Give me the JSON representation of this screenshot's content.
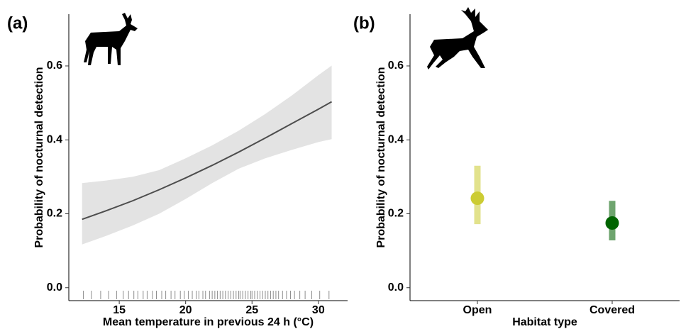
{
  "chart_data": [
    {
      "type": "line",
      "panel_label": "(a)",
      "x_label": "Mean temperature in previous 24 h (°C)",
      "y_label": "Probability of nocturnal detection",
      "x": [
        12.2,
        14,
        16,
        18,
        20,
        22,
        24,
        26,
        28,
        30,
        31
      ],
      "values": [
        0.185,
        0.208,
        0.235,
        0.265,
        0.297,
        0.331,
        0.367,
        0.405,
        0.444,
        0.483,
        0.503
      ],
      "lower": [
        0.117,
        0.14,
        0.168,
        0.2,
        0.24,
        0.283,
        0.322,
        0.35,
        0.373,
        0.394,
        0.402
      ],
      "upper": [
        0.283,
        0.29,
        0.3,
        0.318,
        0.35,
        0.385,
        0.425,
        0.47,
        0.52,
        0.575,
        0.601
      ],
      "color": "#4d4d4d",
      "band_color": "#e3e3e3",
      "rug": [
        12.3,
        12.9,
        13.6,
        14.2,
        14.8,
        15.3,
        15.7,
        16.1,
        16.4,
        16.8,
        17.1,
        17.5,
        17.8,
        18.2,
        18.5,
        18.9,
        19.2,
        19.6,
        19.9,
        20.2,
        20.5,
        20.8,
        21.0,
        21.3,
        21.5,
        21.8,
        22.0,
        22.2,
        22.4,
        22.6,
        22.8,
        23.0,
        23.2,
        23.4,
        23.6,
        23.8,
        24.0,
        24.1,
        24.3,
        24.5,
        24.7,
        24.9,
        25.0,
        25.2,
        25.4,
        25.6,
        25.8,
        26.0,
        26.2,
        26.4,
        26.6,
        26.8,
        27.0,
        27.3,
        27.6,
        27.9,
        28.2,
        28.6,
        29.0,
        29.5,
        30.1,
        30.8
      ],
      "xlim": [
        11.2,
        32.2
      ],
      "xticks": [
        15,
        20,
        25,
        30
      ],
      "ylim": [
        -0.035,
        0.74
      ],
      "yticks": [
        {
          "value": 0,
          "label": "0.0"
        },
        0.2,
        0.4,
        0.6
      ]
    },
    {
      "type": "errorbar",
      "panel_label": "(b)",
      "x_label": "Habitat type",
      "y_label": "Probability of nocturnal detection",
      "categories": [
        "Open",
        "Covered"
      ],
      "values": [
        0.242,
        0.175
      ],
      "lower": [
        0.172,
        0.128
      ],
      "upper": [
        0.33,
        0.235
      ],
      "colors": [
        "#cccc33",
        "#006400"
      ],
      "bar_colors": [
        "#e2e28c",
        "#6ea46e"
      ],
      "ylim": [
        -0.035,
        0.74
      ],
      "yticks": [
        {
          "value": 0,
          "label": "0.0"
        },
        0.2,
        0.4,
        0.6
      ]
    }
  ]
}
